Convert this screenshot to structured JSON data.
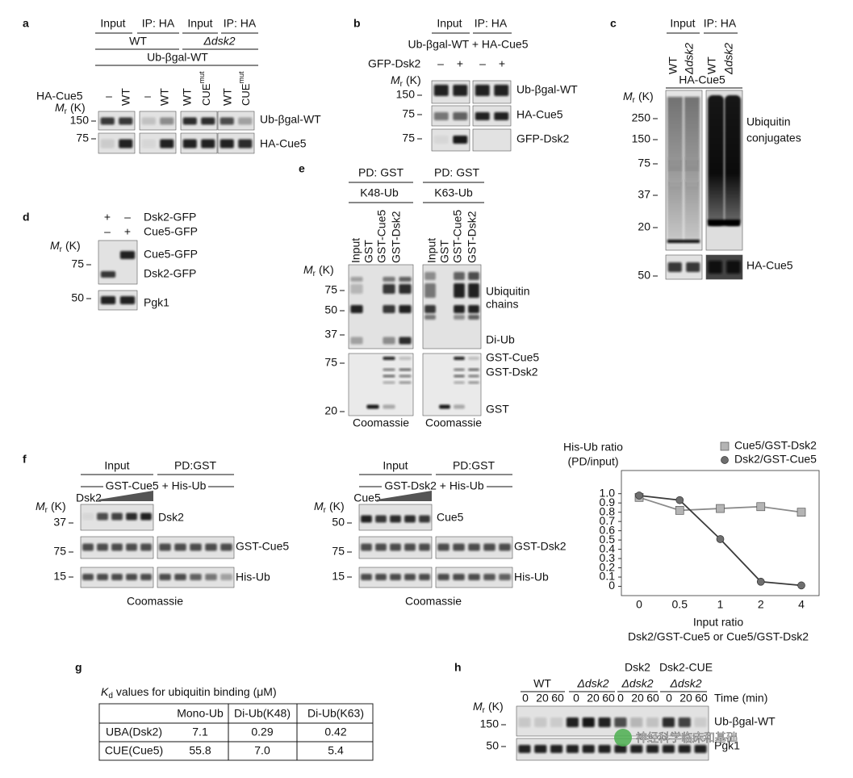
{
  "mr": {
    "m": "M",
    "r": "r",
    "unit": "(K)"
  },
  "panel_a": {
    "label": "a",
    "headers": [
      "Input",
      "IP: HA",
      "Input",
      "IP: HA"
    ],
    "strains": [
      "WT",
      "Δdsk2"
    ],
    "substrate": "Ub-βgal-WT",
    "row_label": "HA-Cue5",
    "lanes": [
      "–",
      "WT",
      "–",
      "WT",
      "WT",
      "CUE",
      "WT",
      "CUE"
    ],
    "lane_sup": "mut",
    "markers": [
      150,
      75
    ],
    "bands": [
      "Ub-βgal-WT",
      "HA-Cue5"
    ]
  },
  "panel_b": {
    "label": "b",
    "headers": [
      "Input",
      "IP: HA"
    ],
    "condition": "Ub-βgal-WT + HA-Cue5",
    "row_label": "GFP-Dsk2",
    "lanes": [
      "–",
      "+",
      "–",
      "+"
    ],
    "markers": [
      150,
      75,
      75
    ],
    "bands": [
      "Ub-βgal-WT",
      "HA-Cue5",
      "GFP-Dsk2"
    ]
  },
  "panel_c": {
    "label": "c",
    "headers": [
      "Input",
      "IP: HA"
    ],
    "lanes": [
      "WT",
      "Δdsk2",
      "WT",
      "Δdsk2"
    ],
    "bait": "HA-Cue5",
    "markers": [
      250,
      150,
      75,
      37,
      20,
      50
    ],
    "bands": [
      "Ubiquitin",
      "conjugates",
      "HA-Cue5"
    ]
  },
  "panel_d": {
    "label": "d",
    "rows": [
      {
        "lanes": [
          "+",
          "–"
        ],
        "name": "Dsk2-GFP"
      },
      {
        "lanes": [
          "–",
          "+"
        ],
        "name": "Cue5-GFP"
      }
    ],
    "markers": [
      75,
      50
    ],
    "bands": [
      "Cue5-GFP",
      "Dsk2-GFP",
      "Pgk1"
    ]
  },
  "panel_e": {
    "label": "e",
    "headers": [
      "PD: GST",
      "PD: GST"
    ],
    "chains": [
      "K48-Ub",
      "K63-Ub"
    ],
    "lanes": [
      "Input",
      "GST",
      "GST-Cue5",
      "GST-Dsk2"
    ],
    "markers": [
      75,
      50,
      37,
      75,
      20
    ],
    "bands": [
      "Ubiquitin",
      "chains",
      "Di-Ub",
      "GST-Cue5",
      "GST-Dsk2",
      "GST"
    ],
    "stain": "Coomassie"
  },
  "panel_f": {
    "label": "f",
    "left": {
      "headers": [
        "Input",
        "PD:GST"
      ],
      "condition": "GST-Cue5 + His-Ub",
      "titrant": "Dsk2",
      "markers": [
        37,
        75,
        15
      ],
      "bands": [
        "Dsk2",
        "GST-Cue5",
        "His-Ub"
      ],
      "stain": "Coomassie"
    },
    "middle": {
      "headers": [
        "Input",
        "PD:GST"
      ],
      "condition": "GST-Dsk2 + His-Ub",
      "titrant": "Cue5",
      "markers": [
        50,
        75,
        15
      ],
      "bands": [
        "Cue5",
        "GST-Dsk2",
        "His-Ub"
      ],
      "stain": "Coomassie"
    }
  },
  "chart_data": {
    "type": "line",
    "ylabel": [
      "His-Ub ratio",
      "(PD/input)"
    ],
    "xlabel": [
      "Input ratio",
      "Dsk2/GST-Cue5 or Cue5/GST-Dsk2"
    ],
    "categories": [
      "0",
      "0.5",
      "1",
      "2",
      "4"
    ],
    "series": [
      {
        "name": "Cue5/GST-Dsk2",
        "marker": "square",
        "color": "#8a8a8a",
        "marker_color": "#b4b4b4",
        "values": [
          0.96,
          0.82,
          0.84,
          0.86,
          0.8
        ]
      },
      {
        "name": "Dsk2/GST-Cue5",
        "marker": "circle",
        "color": "#3a3a3a",
        "marker_color": "#6e6e6e",
        "values": [
          0.98,
          0.93,
          0.51,
          0.05,
          0.01
        ]
      }
    ],
    "ylim": [
      -0.1,
      1.25
    ],
    "yticks": [
      0,
      0.1,
      0.2,
      0.3,
      0.4,
      0.5,
      0.6,
      0.7,
      0.8,
      0.9,
      {
        "value": 1,
        "label": "1.0"
      }
    ],
    "grid": false,
    "legend": "top-right"
  },
  "panel_g": {
    "label": "g",
    "title": {
      "k": "K",
      "d": "d",
      "rest": "values for ubiquitin binding (μM)"
    },
    "columns": [
      "Mono-Ub",
      "Di-Ub(K48)",
      "Di-Ub(K63)"
    ],
    "rows": [
      [
        "UBA(Dsk2)",
        "7.1",
        "0.29",
        "0.42"
      ],
      [
        "CUE(Cue5)",
        "55.8",
        "7.0",
        "5.4"
      ]
    ]
  },
  "panel_h": {
    "label": "h",
    "groups": [
      {
        "top": "WT"
      },
      {
        "top": "Δdsk2"
      },
      {
        "top": "Dsk2",
        "strain": "Δdsk2"
      },
      {
        "top": "Dsk2-CUE",
        "strain": "Δdsk2"
      }
    ],
    "times": [
      "0",
      "20",
      "60"
    ],
    "time_label": "Time (min)",
    "markers": [
      150,
      50
    ],
    "bands": [
      "Ub-βgal-WT",
      "Pgk1"
    ]
  },
  "watermark": "神经科学临床和基础"
}
